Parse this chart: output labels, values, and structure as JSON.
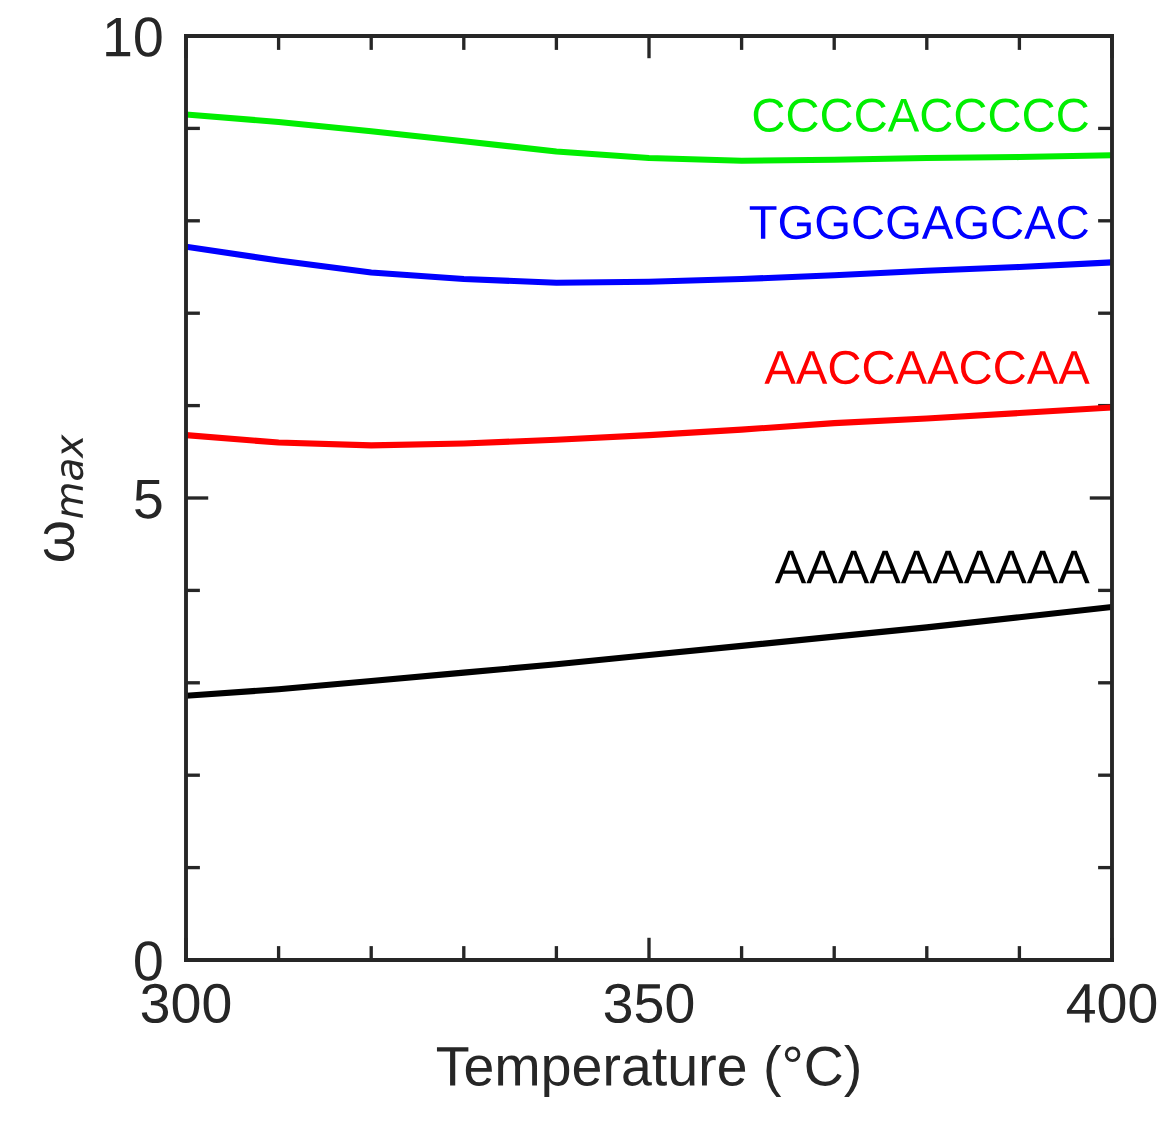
{
  "chart_data": {
    "type": "line",
    "xlabel": "Temperature (°C)",
    "ylabel": "ω$_{max}$",
    "x": [
      300,
      310,
      320,
      330,
      340,
      350,
      360,
      370,
      380,
      390,
      400
    ],
    "series": [
      {
        "name": "CCCCACCCCC",
        "color": "#00ee00",
        "values": [
          9.15,
          9.07,
          8.97,
          8.86,
          8.75,
          8.68,
          8.65,
          8.66,
          8.68,
          8.69,
          8.71
        ]
      },
      {
        "name": "TGGCGAGCAC",
        "color": "#0000ff",
        "values": [
          7.72,
          7.57,
          7.44,
          7.37,
          7.33,
          7.34,
          7.37,
          7.41,
          7.46,
          7.5,
          7.55
        ]
      },
      {
        "name": "AACCAACCAA",
        "color": "#ff0000",
        "values": [
          5.68,
          5.6,
          5.57,
          5.59,
          5.63,
          5.68,
          5.74,
          5.81,
          5.86,
          5.92,
          5.98
        ]
      },
      {
        "name": "AAAAAAAAAA",
        "color": "#000000",
        "values": [
          2.86,
          2.93,
          3.02,
          3.11,
          3.2,
          3.3,
          3.4,
          3.5,
          3.6,
          3.71,
          3.82
        ]
      }
    ],
    "xlim": [
      300,
      400
    ],
    "xticks": [
      300,
      {
        "value": 310,
        "label": null
      },
      {
        "value": 320,
        "label": null
      },
      {
        "value": 330,
        "label": null
      },
      {
        "value": 340,
        "label": null
      },
      350,
      {
        "value": 360,
        "label": null
      },
      {
        "value": 370,
        "label": null
      },
      {
        "value": 380,
        "label": null
      },
      {
        "value": 390,
        "label": null
      },
      400
    ],
    "ylim": [
      0,
      10
    ],
    "yticks": [
      0,
      {
        "value": 1,
        "label": null
      },
      {
        "value": 2,
        "label": null
      },
      {
        "value": 3,
        "label": null
      },
      {
        "value": 4,
        "label": null
      },
      5,
      {
        "value": 6,
        "label": null
      },
      {
        "value": 7,
        "label": null
      },
      {
        "value": 8,
        "label": null
      },
      {
        "value": 9,
        "label": null
      },
      10
    ],
    "grid": false,
    "legend": false,
    "marker": "none",
    "line_style": "solid"
  }
}
